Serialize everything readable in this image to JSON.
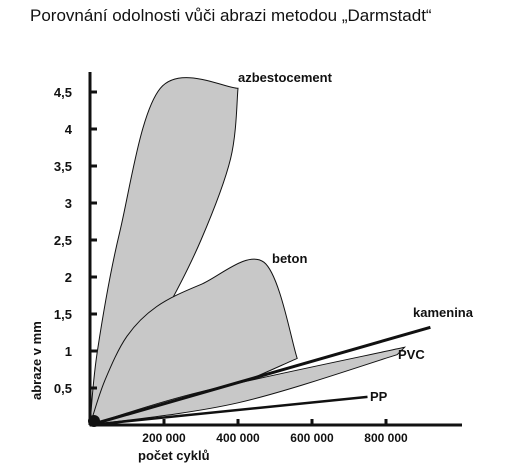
{
  "chart_data": {
    "type": "area",
    "title": "Porovnání odolnosti vůči abrazi metodou „Darmstadt“",
    "xlabel": "počet cyklů",
    "ylabel": "abraze v mm",
    "xlim": [
      0,
      1000000
    ],
    "ylim": [
      0,
      4.5
    ],
    "grid": false,
    "x_ticks": [
      {
        "value": 200000,
        "label": "200 000"
      },
      {
        "value": 400000,
        "label": "400 000"
      },
      {
        "value": 600000,
        "label": "600 000"
      },
      {
        "value": 800000,
        "label": "800 000"
      }
    ],
    "y_ticks": [
      {
        "value": 0.5,
        "label": "0,5"
      },
      {
        "value": 1,
        "label": "1"
      },
      {
        "value": 1.5,
        "label": "1,5"
      },
      {
        "value": 2,
        "label": "2"
      },
      {
        "value": 2.5,
        "label": "2,5"
      },
      {
        "value": 3,
        "label": "3"
      },
      {
        "value": 3.5,
        "label": "3,5"
      },
      {
        "value": 4,
        "label": "4"
      },
      {
        "value": 4.5,
        "label": "4,5"
      }
    ],
    "series": [
      {
        "name": "azbestocement",
        "kind": "band",
        "fill": "#c8c8c8",
        "upper": [
          [
            0,
            0
          ],
          [
            20000,
            1.0
          ],
          [
            80000,
            2.6
          ],
          [
            190000,
            4.55
          ],
          [
            400000,
            4.55
          ]
        ],
        "lower": [
          [
            0,
            0
          ],
          [
            100000,
            0.7
          ],
          [
            200000,
            1.5
          ],
          [
            300000,
            2.5
          ],
          [
            380000,
            3.6
          ],
          [
            400000,
            4.55
          ]
        ]
      },
      {
        "name": "beton",
        "kind": "band",
        "fill": "#c8c8c8",
        "upper": [
          [
            0,
            0
          ],
          [
            40000,
            0.6
          ],
          [
            100000,
            1.2
          ],
          [
            180000,
            1.6
          ],
          [
            300000,
            1.9
          ],
          [
            470000,
            2.2
          ],
          [
            560000,
            0.9
          ]
        ],
        "lower": [
          [
            0,
            0
          ],
          [
            150000,
            0.15
          ],
          [
            350000,
            0.45
          ],
          [
            560000,
            0.9
          ]
        ]
      },
      {
        "name": "PVC",
        "kind": "band",
        "fill": "#c8c8c8",
        "upper": [
          [
            0,
            0
          ],
          [
            300000,
            0.45
          ],
          [
            850000,
            1.05
          ]
        ],
        "lower": [
          [
            0,
            0
          ],
          [
            400000,
            0.3
          ],
          [
            830000,
            0.95
          ]
        ]
      },
      {
        "name": "kamenina",
        "kind": "line",
        "points": [
          [
            0,
            0
          ],
          [
            920000,
            1.32
          ]
        ]
      },
      {
        "name": "PP",
        "kind": "line",
        "points": [
          [
            0,
            0
          ],
          [
            750000,
            0.38
          ]
        ]
      }
    ],
    "annotations": [
      "azbestocement",
      "beton",
      "kamenina",
      "PVC",
      "PP"
    ]
  }
}
